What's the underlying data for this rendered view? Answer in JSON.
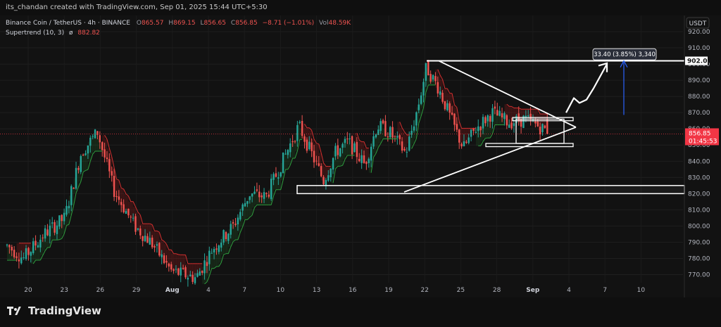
{
  "header": {
    "credit": "its_chandan created with TradingView.com, Sep 01, 2025 15:44 UTC+5:30"
  },
  "legend": {
    "symbol": "Binance Coin / TetherUS · 4h · BINANCE",
    "o_label": "O",
    "o": "865.57",
    "h_label": "H",
    "h": "869.15",
    "l_label": "L",
    "l": "856.65",
    "c_label": "C",
    "c": "856.85",
    "change": "−8.71 (−1.01%)",
    "vol_label": "Vol",
    "vol": "48.59K",
    "indicator": "Supertrend (10, 3)",
    "indicator_symbol": "ø",
    "indicator_value": "882.82"
  },
  "currency": "USDT",
  "price_badge": {
    "price": "856.85",
    "timer": "01:45:53"
  },
  "level_badge": "902.00",
  "measure_label": "33.40 (3.85%) 3,340",
  "footer": {
    "brand": "TradingView"
  },
  "colors": {
    "up": "#26a69a",
    "down": "#ef5350",
    "supertrend_up": "#2e7d32",
    "supertrend_down": "#b71c1c",
    "price_line": "#f23645",
    "arrow": "#2962ff"
  },
  "chart_data": {
    "type": "candlestick",
    "ylim": [
      765,
      930
    ],
    "y_ticks": [
      770,
      780,
      790,
      800,
      810,
      820,
      830,
      840,
      850,
      860,
      870,
      880,
      890,
      900,
      910,
      920
    ],
    "x_ticks": [
      "20",
      "23",
      "26",
      "29",
      "Aug",
      "4",
      "7",
      "10",
      "13",
      "16",
      "19",
      "22",
      "25",
      "28",
      "Sep",
      "4",
      "7",
      "10"
    ],
    "last_price": 856.85,
    "target_level": 902.0,
    "support_zone": [
      820,
      825
    ]
  }
}
